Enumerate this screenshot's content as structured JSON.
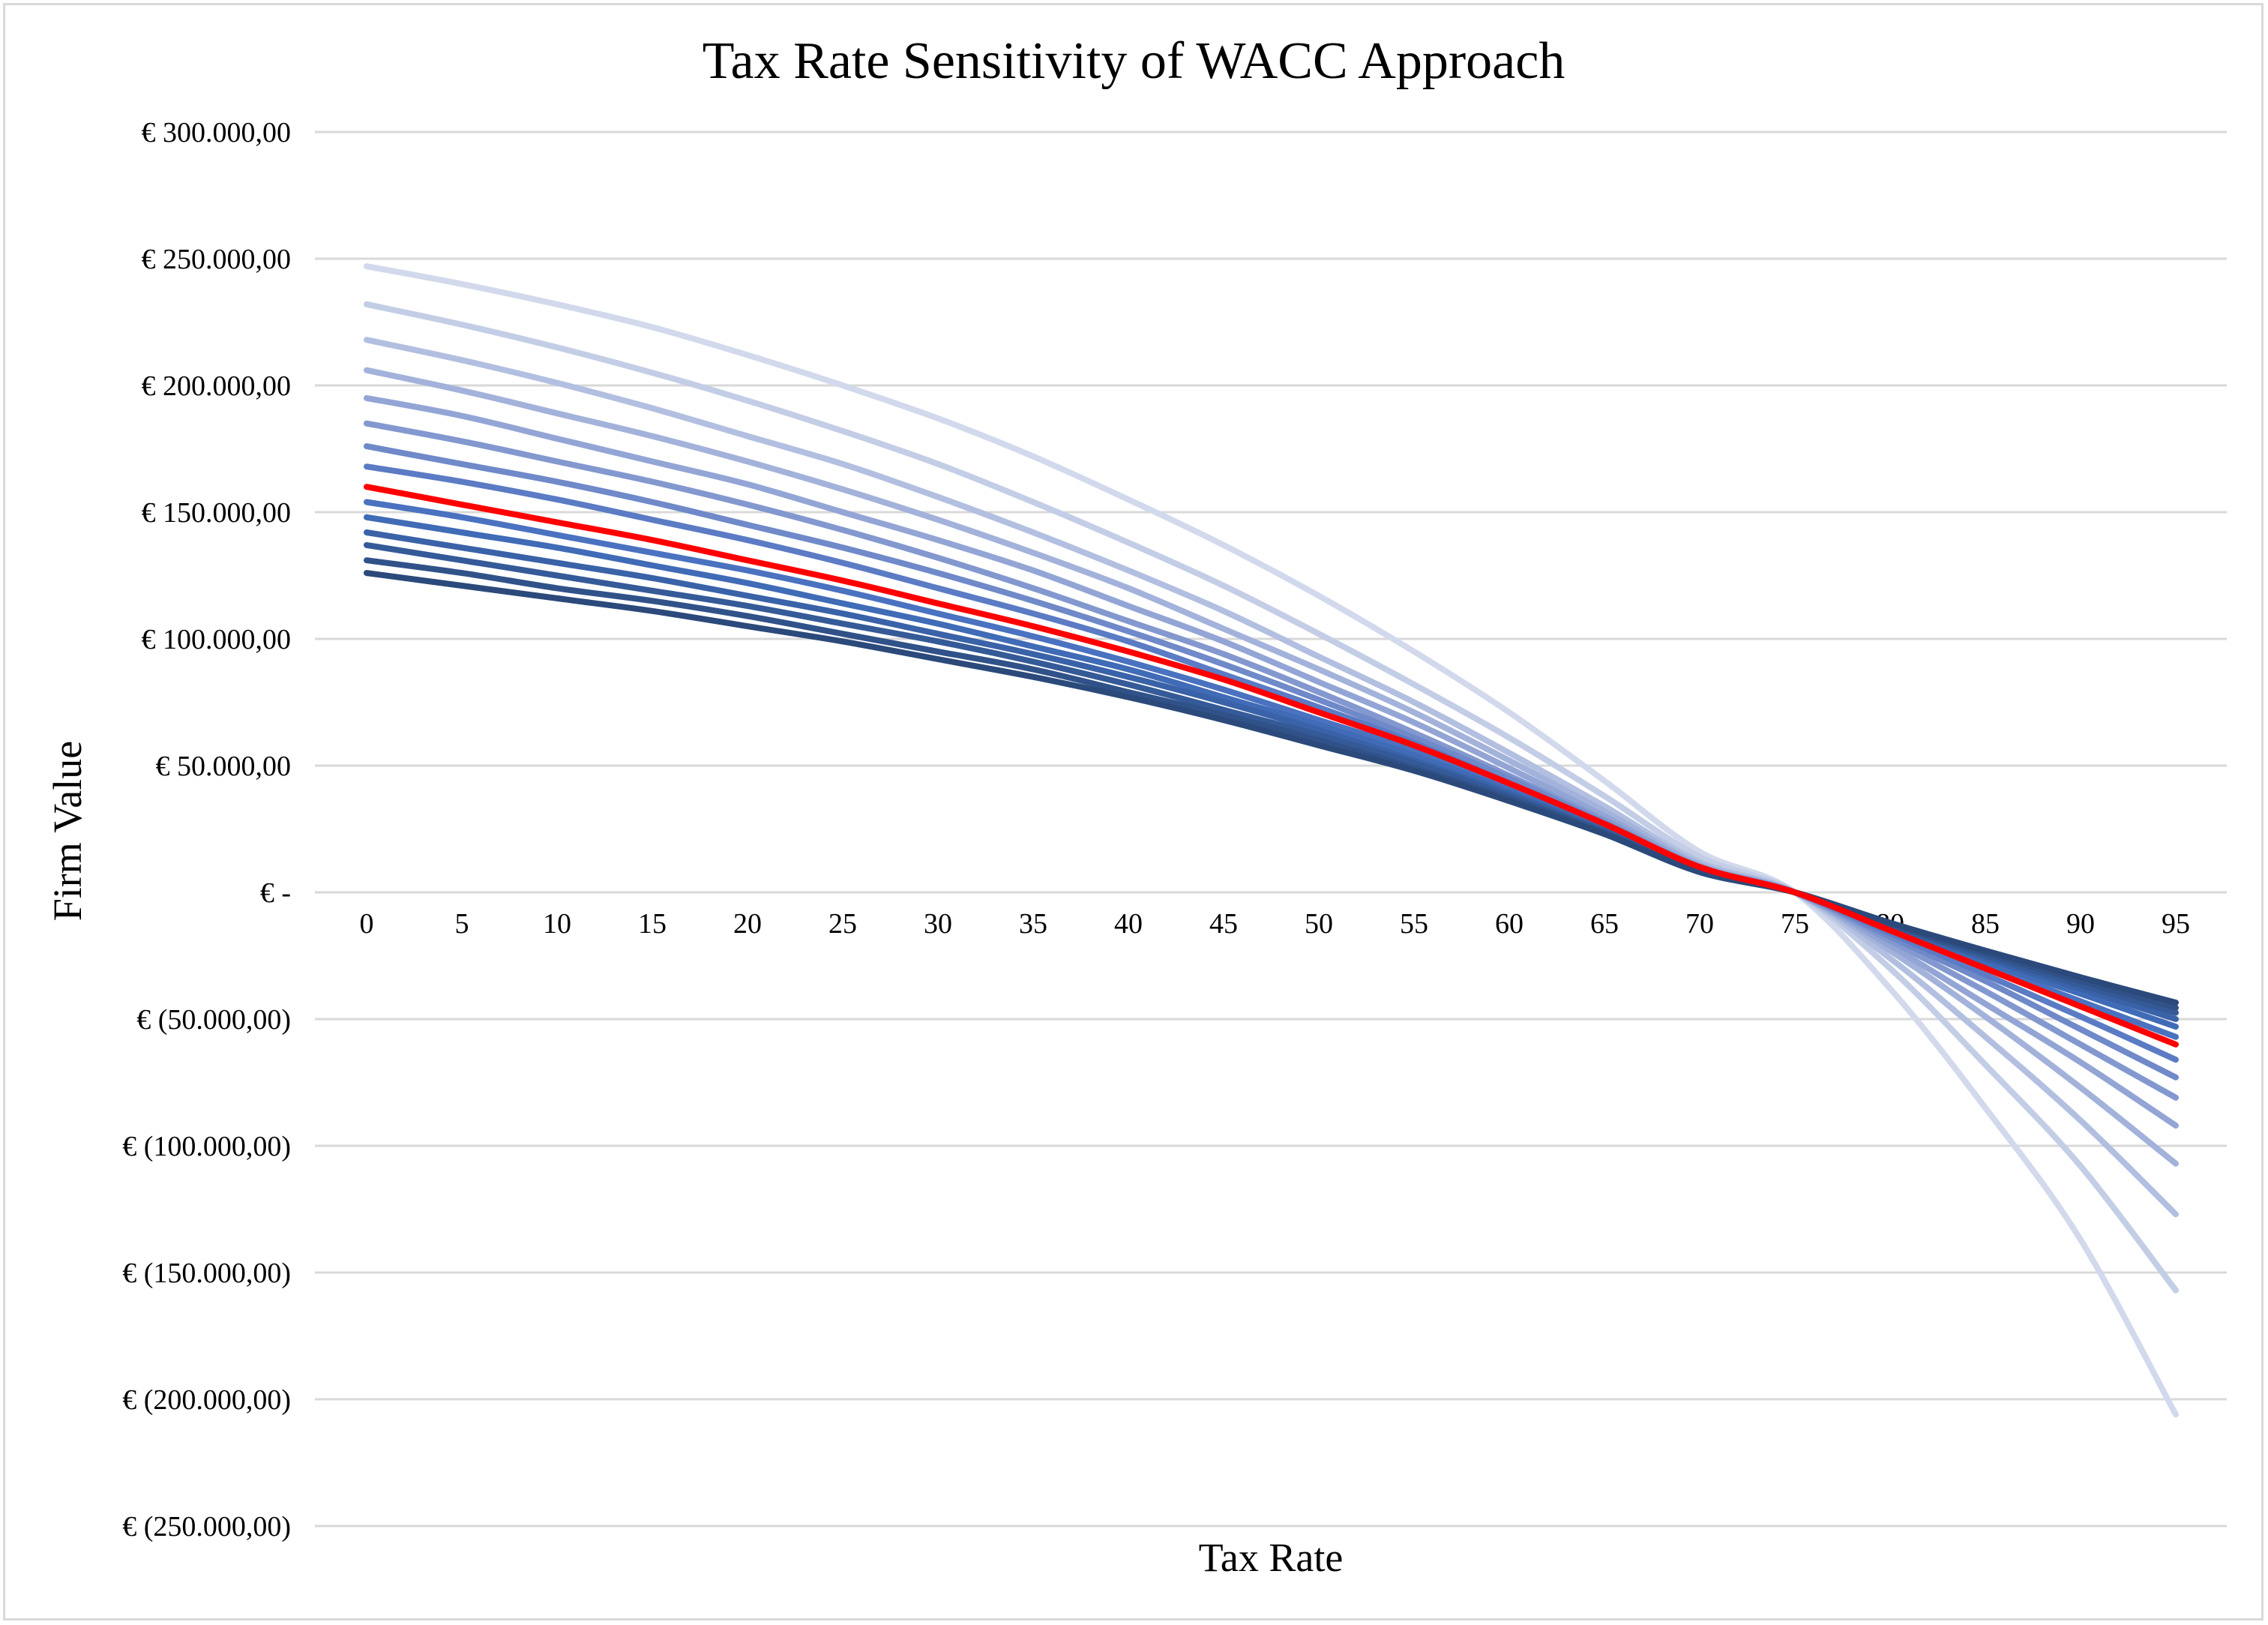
{
  "chart_data": {
    "type": "line",
    "title": "Tax Rate Sensitivity of WACC Approach",
    "xlabel": "Tax Rate",
    "ylabel": "Firm Value",
    "ylim": [
      -250000,
      300000
    ],
    "grid": true,
    "legend": "none",
    "x": [
      0,
      5,
      10,
      15,
      20,
      25,
      30,
      35,
      40,
      45,
      50,
      55,
      60,
      65,
      70,
      75,
      80,
      85,
      90,
      95
    ],
    "y_ticks": [
      {
        "value": 300000,
        "label": "€ 300.000,00"
      },
      {
        "value": 250000,
        "label": "€ 250.000,00"
      },
      {
        "value": 200000,
        "label": "€ 200.000,00"
      },
      {
        "value": 150000,
        "label": "€ 150.000,00"
      },
      {
        "value": 100000,
        "label": "€ 100.000,00"
      },
      {
        "value": 50000,
        "label": "€ 50.000,00"
      },
      {
        "value": 0,
        "label": "€ -"
      },
      {
        "value": -50000,
        "label": "€ (50.000,00)"
      },
      {
        "value": -100000,
        "label": "€ (100.000,00)"
      },
      {
        "value": -150000,
        "label": "€ (150.000,00)"
      },
      {
        "value": -200000,
        "label": "€ (200.000,00)"
      },
      {
        "value": -250000,
        "label": "€ (250.000,00)"
      }
    ],
    "series": [
      {
        "color": "#d2d9ec",
        "values": [
          247000,
          240000,
          232000,
          223000,
          212000,
          200000,
          187000,
          172000,
          155000,
          137000,
          117000,
          95000,
          71000,
          44000,
          16000,
          0,
          -38000,
          -85000,
          -137000,
          -206000
        ]
      },
      {
        "color": "#c3cde6",
        "values": [
          232000,
          224000,
          215000,
          205000,
          194000,
          182000,
          169000,
          154000,
          138000,
          121000,
          102000,
          82000,
          61000,
          38000,
          14000,
          0,
          -30000,
          -68000,
          -108000,
          -157000
        ]
      },
      {
        "color": "#b2bfe0",
        "values": [
          218000,
          210000,
          201000,
          191000,
          180000,
          169000,
          156000,
          142000,
          127000,
          111000,
          93000,
          75000,
          55000,
          34000,
          12000,
          0,
          -26000,
          -57000,
          -90000,
          -127000
        ]
      },
      {
        "color": "#a3b2da",
        "values": [
          206000,
          198000,
          189000,
          180000,
          170000,
          159000,
          147000,
          134000,
          120000,
          104000,
          88000,
          71000,
          52000,
          32000,
          11000,
          0,
          -23000,
          -49000,
          -77000,
          -107000
        ]
      },
      {
        "color": "#93a5d5",
        "values": [
          195000,
          188000,
          179000,
          170000,
          161000,
          150000,
          139000,
          127000,
          113000,
          99000,
          83000,
          67000,
          49000,
          30000,
          10500,
          0,
          -21000,
          -44000,
          -67000,
          -92000
        ]
      },
      {
        "color": "#8398cf",
        "values": [
          185000,
          178000,
          170000,
          162000,
          153000,
          143000,
          132000,
          120000,
          107000,
          94000,
          79000,
          63000,
          46000,
          28500,
          10000,
          0,
          -19000,
          -39000,
          -60000,
          -81000
        ]
      },
      {
        "color": "#6f89c9",
        "values": [
          176000,
          169000,
          162000,
          154000,
          145000,
          136000,
          126000,
          115000,
          103000,
          90000,
          76000,
          61000,
          45000,
          27500,
          9500,
          0,
          -17500,
          -35000,
          -54000,
          -73000
        ]
      },
      {
        "color": "#5b7bc4",
        "values": [
          168000,
          162000,
          155000,
          147000,
          139000,
          130000,
          120000,
          110000,
          99000,
          86000,
          73000,
          59000,
          43000,
          26500,
          9000,
          0,
          -16000,
          -32500,
          -49000,
          -66000
        ]
      },
      {
        "color": "#ff0000",
        "values": [
          160000,
          153000,
          146000,
          139000,
          131000,
          123000,
          114000,
          105000,
          95000,
          84000,
          71000,
          58000,
          43000,
          27000,
          10000,
          0,
          -15000,
          -30000,
          -45000,
          -60000
        ]
      },
      {
        "color": "#4a72c0",
        "values": [
          154000,
          148000,
          141000,
          134000,
          127000,
          119000,
          110000,
          101000,
          91000,
          80000,
          68000,
          56000,
          41000,
          25500,
          9000,
          0,
          -14500,
          -29000,
          -43000,
          -57000
        ]
      },
      {
        "color": "#406bb6",
        "values": [
          148000,
          142000,
          136000,
          129000,
          122000,
          114000,
          106000,
          97000,
          88000,
          77000,
          66000,
          54000,
          40000,
          25000,
          8800,
          0,
          -14000,
          -27500,
          -40000,
          -53000
        ]
      },
      {
        "color": "#3a62a8",
        "values": [
          142000,
          136000,
          130000,
          124000,
          117000,
          110000,
          102000,
          94000,
          85000,
          75000,
          64000,
          52000,
          39000,
          24500,
          8600,
          0,
          -13500,
          -26000,
          -38000,
          -50000
        ]
      },
      {
        "color": "#355a98",
        "values": [
          137000,
          131000,
          125000,
          119000,
          113000,
          106000,
          99000,
          91000,
          82000,
          72000,
          62000,
          51000,
          38000,
          24000,
          8400,
          0,
          -13000,
          -25000,
          -36500,
          -47500
        ]
      },
      {
        "color": "#305289",
        "values": [
          131000,
          126000,
          120000,
          115000,
          109000,
          102000,
          95000,
          88000,
          79000,
          70000,
          60000,
          49000,
          37000,
          23500,
          8200,
          0,
          -12500,
          -24000,
          -35000,
          -45500
        ]
      },
      {
        "color": "#2b4a7b",
        "values": [
          126000,
          121000,
          116000,
          111000,
          105000,
          99000,
          92000,
          85000,
          77000,
          68000,
          58000,
          48000,
          36000,
          23000,
          8000,
          0,
          -12000,
          -23000,
          -33500,
          -43500
        ]
      }
    ]
  }
}
